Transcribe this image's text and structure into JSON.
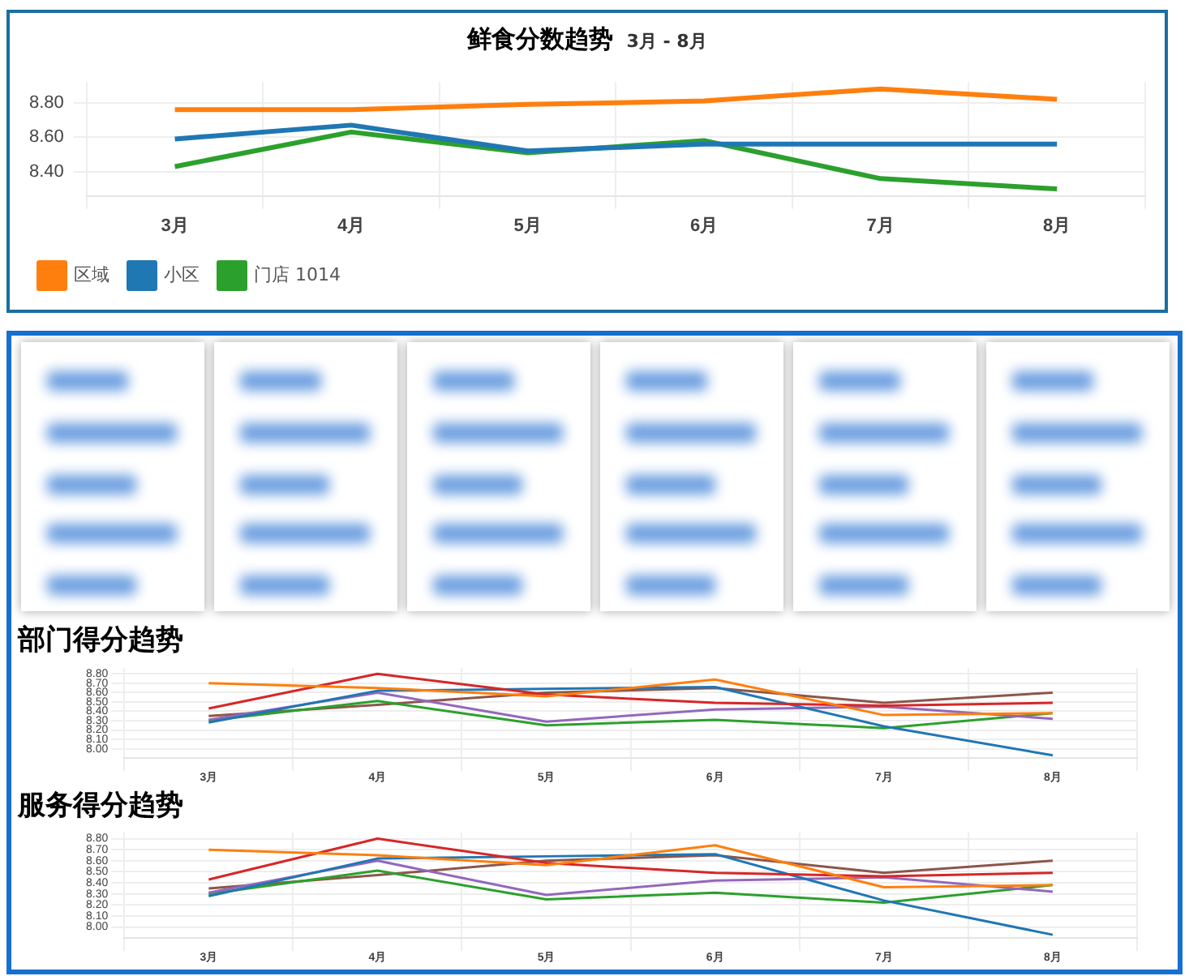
{
  "chart_data": [
    {
      "type": "line",
      "title": "鲜食分数趋势",
      "subtitle": "3月 - 8月",
      "categories": [
        "3月",
        "4月",
        "5月",
        "6月",
        "7月",
        "8月"
      ],
      "series": [
        {
          "name": "区域",
          "color": "#ff7f0e",
          "values": [
            8.76,
            8.76,
            8.79,
            8.81,
            8.88,
            8.82
          ]
        },
        {
          "name": "小区",
          "color": "#1f77b4",
          "values": [
            8.59,
            8.67,
            8.52,
            8.56,
            8.56,
            8.56
          ]
        },
        {
          "name": "门店 1014",
          "color": "#2ca02c",
          "values": [
            8.43,
            8.63,
            8.51,
            8.58,
            8.36,
            8.3
          ]
        }
      ],
      "ylim": [
        8.26,
        8.92
      ],
      "yticks": [
        {
          "value": 8.4,
          "label": "8.40"
        },
        {
          "value": 8.6,
          "label": "8.60"
        },
        {
          "value": 8.8,
          "label": "8.80"
        }
      ],
      "grid": true,
      "legend": "bottom",
      "marker": "none",
      "line_style": "solid"
    },
    {
      "type": "line",
      "title": "部门得分趋势",
      "categories": [
        "3月",
        "4月",
        "5月",
        "6月",
        "7月",
        "8月"
      ],
      "series": [
        {
          "color": "#ff7f0e",
          "values": [
            8.7,
            8.65,
            8.56,
            8.74,
            8.36,
            8.38
          ]
        },
        {
          "color": "#d62728",
          "values": [
            8.43,
            8.8,
            8.58,
            8.49,
            8.46,
            8.49
          ]
        },
        {
          "color": "#1f77b4",
          "values": [
            8.28,
            8.62,
            8.64,
            8.66,
            8.24,
            7.93
          ]
        },
        {
          "color": "#9467bd",
          "values": [
            8.31,
            8.6,
            8.29,
            8.42,
            8.45,
            8.32
          ]
        },
        {
          "color": "#2ca02c",
          "values": [
            8.3,
            8.51,
            8.25,
            8.31,
            8.22,
            8.38
          ]
        },
        {
          "color": "#8c564b",
          "values": [
            8.35,
            8.47,
            8.6,
            8.65,
            8.49,
            8.6
          ]
        }
      ],
      "ylim": [
        7.9,
        8.86
      ],
      "yticks": [
        {
          "value": 8.0,
          "label": "8.00"
        },
        {
          "value": 8.1,
          "label": "8.10"
        },
        {
          "value": 8.2,
          "label": "8.20"
        },
        {
          "value": 8.3,
          "label": "8.30"
        },
        {
          "value": 8.4,
          "label": "8.40"
        },
        {
          "value": 8.5,
          "label": "8.50"
        },
        {
          "value": 8.6,
          "label": "8.60"
        },
        {
          "value": 8.7,
          "label": "8.70"
        },
        {
          "value": 8.8,
          "label": "8.80"
        }
      ],
      "grid": true,
      "legend": false,
      "marker": "none",
      "line_style": "solid"
    },
    {
      "type": "line",
      "title": "服务得分趋势",
      "categories": [
        "3月",
        "4月",
        "5月",
        "6月",
        "7月",
        "8月"
      ],
      "series": [
        {
          "color": "#ff7f0e",
          "values": [
            8.7,
            8.65,
            8.56,
            8.74,
            8.36,
            8.38
          ]
        },
        {
          "color": "#d62728",
          "values": [
            8.43,
            8.8,
            8.58,
            8.49,
            8.46,
            8.49
          ]
        },
        {
          "color": "#1f77b4",
          "values": [
            8.28,
            8.62,
            8.64,
            8.66,
            8.24,
            7.93
          ]
        },
        {
          "color": "#9467bd",
          "values": [
            8.31,
            8.6,
            8.29,
            8.42,
            8.45,
            8.32
          ]
        },
        {
          "color": "#2ca02c",
          "values": [
            8.3,
            8.51,
            8.25,
            8.31,
            8.22,
            8.38
          ]
        },
        {
          "color": "#8c564b",
          "values": [
            8.35,
            8.47,
            8.6,
            8.65,
            8.49,
            8.6
          ]
        }
      ],
      "ylim": [
        7.9,
        8.86
      ],
      "yticks": [
        {
          "value": 8.0,
          "label": "8.00"
        },
        {
          "value": 8.1,
          "label": "8.10"
        },
        {
          "value": 8.2,
          "label": "8.20"
        },
        {
          "value": 8.3,
          "label": "8.30"
        },
        {
          "value": 8.4,
          "label": "8.40"
        },
        {
          "value": 8.5,
          "label": "8.50"
        },
        {
          "value": 8.6,
          "label": "8.60"
        },
        {
          "value": 8.7,
          "label": "8.70"
        },
        {
          "value": 8.8,
          "label": "8.80"
        }
      ],
      "grid": true,
      "legend": false,
      "marker": "none",
      "line_style": "solid"
    }
  ]
}
